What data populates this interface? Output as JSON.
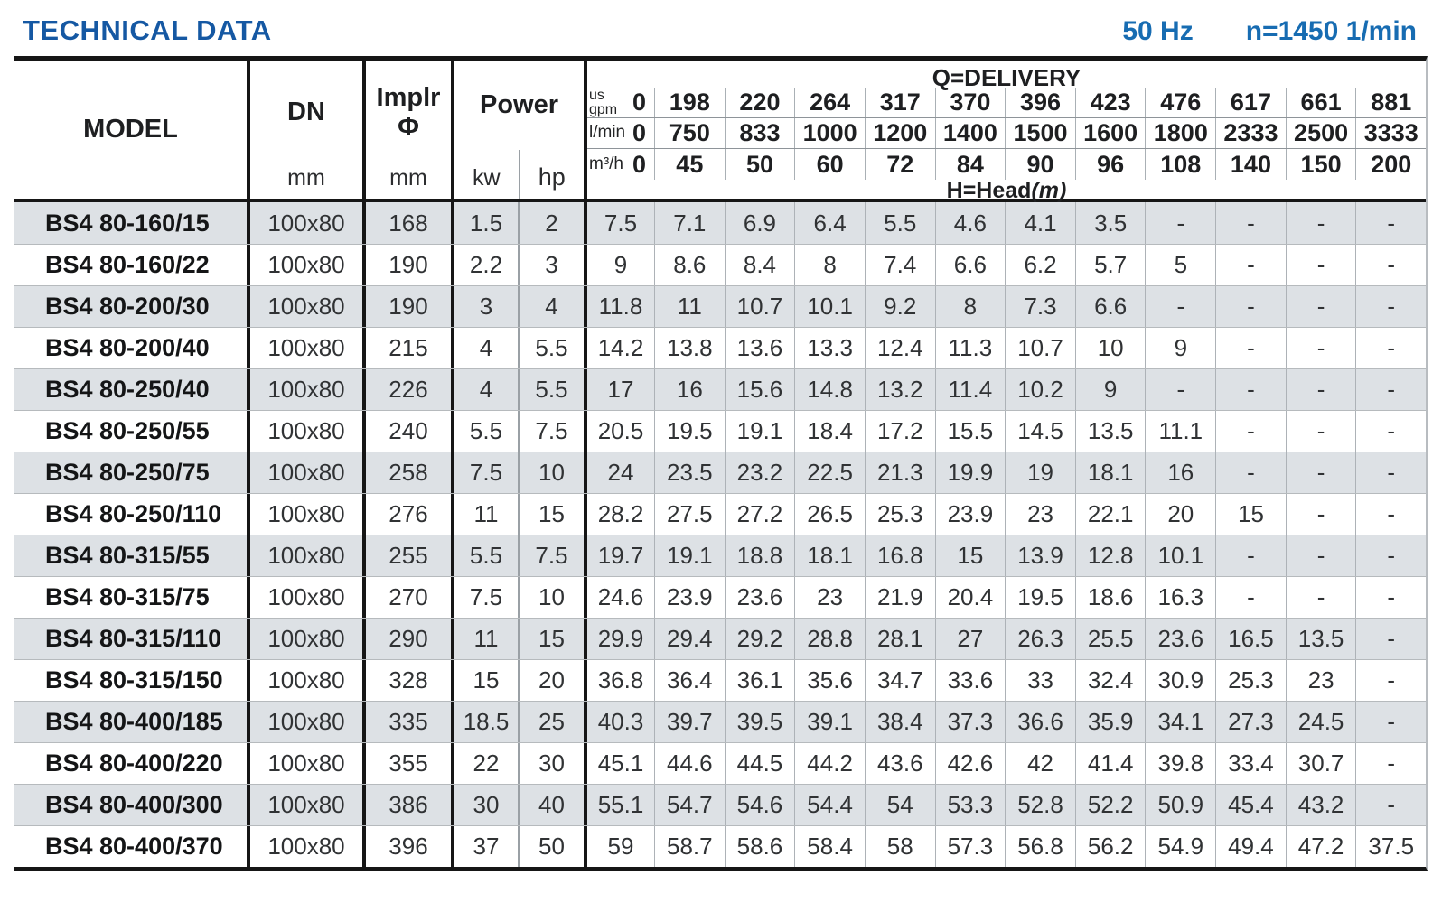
{
  "header": {
    "title": "TECHNICAL DATA",
    "frequency": "50 Hz",
    "speed": "n=1450 1/min"
  },
  "table": {
    "col_model": "MODEL",
    "col_dn": "DN",
    "col_dn_unit": "mm",
    "col_implr_line1": "Implr",
    "col_implr_line2": "Φ",
    "col_implr_unit": "mm",
    "col_power": "Power",
    "col_kw": "kw",
    "col_hp": "hp",
    "q_title": "Q=DELIVERY",
    "h_title": "H=Head",
    "h_title_unit": "(m)",
    "flow_rows": [
      {
        "label": "us\ngpm",
        "two_line": true,
        "values": [
          "0",
          "198",
          "220",
          "264",
          "317",
          "370",
          "396",
          "423",
          "476",
          "617",
          "661",
          "881"
        ]
      },
      {
        "label": "l/min",
        "two_line": false,
        "values": [
          "0",
          "750",
          "833",
          "1000",
          "1200",
          "1400",
          "1500",
          "1600",
          "1800",
          "2333",
          "2500",
          "3333"
        ]
      },
      {
        "label": "m³/h",
        "two_line": false,
        "values": [
          "0",
          "45",
          "50",
          "60",
          "72",
          "84",
          "90",
          "96",
          "108",
          "140",
          "150",
          "200"
        ]
      }
    ],
    "rows": [
      {
        "model": "BS4 80-160/15",
        "dn": "100x80",
        "implr": "168",
        "kw": "1.5",
        "hp": "2",
        "head": [
          "7.5",
          "7.1",
          "6.9",
          "6.4",
          "5.5",
          "4.6",
          "4.1",
          "3.5",
          "-",
          "-",
          "-",
          "-"
        ]
      },
      {
        "model": "BS4 80-160/22",
        "dn": "100x80",
        "implr": "190",
        "kw": "2.2",
        "hp": "3",
        "head": [
          "9",
          "8.6",
          "8.4",
          "8",
          "7.4",
          "6.6",
          "6.2",
          "5.7",
          "5",
          "-",
          "-",
          "-"
        ]
      },
      {
        "model": "BS4 80-200/30",
        "dn": "100x80",
        "implr": "190",
        "kw": "3",
        "hp": "4",
        "head": [
          "11.8",
          "11",
          "10.7",
          "10.1",
          "9.2",
          "8",
          "7.3",
          "6.6",
          "-",
          "-",
          "-",
          "-"
        ]
      },
      {
        "model": "BS4 80-200/40",
        "dn": "100x80",
        "implr": "215",
        "kw": "4",
        "hp": "5.5",
        "head": [
          "14.2",
          "13.8",
          "13.6",
          "13.3",
          "12.4",
          "11.3",
          "10.7",
          "10",
          "9",
          "-",
          "-",
          "-"
        ]
      },
      {
        "model": "BS4 80-250/40",
        "dn": "100x80",
        "implr": "226",
        "kw": "4",
        "hp": "5.5",
        "head": [
          "17",
          "16",
          "15.6",
          "14.8",
          "13.2",
          "11.4",
          "10.2",
          "9",
          "-",
          "-",
          "-",
          "-"
        ]
      },
      {
        "model": "BS4 80-250/55",
        "dn": "100x80",
        "implr": "240",
        "kw": "5.5",
        "hp": "7.5",
        "head": [
          "20.5",
          "19.5",
          "19.1",
          "18.4",
          "17.2",
          "15.5",
          "14.5",
          "13.5",
          "11.1",
          "-",
          "-",
          "-"
        ]
      },
      {
        "model": "BS4 80-250/75",
        "dn": "100x80",
        "implr": "258",
        "kw": "7.5",
        "hp": "10",
        "head": [
          "24",
          "23.5",
          "23.2",
          "22.5",
          "21.3",
          "19.9",
          "19",
          "18.1",
          "16",
          "-",
          "-",
          "-"
        ]
      },
      {
        "model": "BS4 80-250/110",
        "dn": "100x80",
        "implr": "276",
        "kw": "11",
        "hp": "15",
        "head": [
          "28.2",
          "27.5",
          "27.2",
          "26.5",
          "25.3",
          "23.9",
          "23",
          "22.1",
          "20",
          "15",
          "-",
          "-"
        ]
      },
      {
        "model": "BS4 80-315/55",
        "dn": "100x80",
        "implr": "255",
        "kw": "5.5",
        "hp": "7.5",
        "head": [
          "19.7",
          "19.1",
          "18.8",
          "18.1",
          "16.8",
          "15",
          "13.9",
          "12.8",
          "10.1",
          "-",
          "-",
          "-"
        ]
      },
      {
        "model": "BS4 80-315/75",
        "dn": "100x80",
        "implr": "270",
        "kw": "7.5",
        "hp": "10",
        "head": [
          "24.6",
          "23.9",
          "23.6",
          "23",
          "21.9",
          "20.4",
          "19.5",
          "18.6",
          "16.3",
          "-",
          "-",
          "-"
        ]
      },
      {
        "model": "BS4 80-315/110",
        "dn": "100x80",
        "implr": "290",
        "kw": "11",
        "hp": "15",
        "head": [
          "29.9",
          "29.4",
          "29.2",
          "28.8",
          "28.1",
          "27",
          "26.3",
          "25.5",
          "23.6",
          "16.5",
          "13.5",
          "-"
        ]
      },
      {
        "model": "BS4 80-315/150",
        "dn": "100x80",
        "implr": "328",
        "kw": "15",
        "hp": "20",
        "head": [
          "36.8",
          "36.4",
          "36.1",
          "35.6",
          "34.7",
          "33.6",
          "33",
          "32.4",
          "30.9",
          "25.3",
          "23",
          "-"
        ]
      },
      {
        "model": "BS4 80-400/185",
        "dn": "100x80",
        "implr": "335",
        "kw": "18.5",
        "hp": "25",
        "head": [
          "40.3",
          "39.7",
          "39.5",
          "39.1",
          "38.4",
          "37.3",
          "36.6",
          "35.9",
          "34.1",
          "27.3",
          "24.5",
          "-"
        ]
      },
      {
        "model": "BS4 80-400/220",
        "dn": "100x80",
        "implr": "355",
        "kw": "22",
        "hp": "30",
        "head": [
          "45.1",
          "44.6",
          "44.5",
          "44.2",
          "43.6",
          "42.6",
          "42",
          "41.4",
          "39.8",
          "33.4",
          "30.7",
          "-"
        ]
      },
      {
        "model": "BS4 80-400/300",
        "dn": "100x80",
        "implr": "386",
        "kw": "30",
        "hp": "40",
        "head": [
          "55.1",
          "54.7",
          "54.6",
          "54.4",
          "54",
          "53.3",
          "52.8",
          "52.2",
          "50.9",
          "45.4",
          "43.2",
          "-"
        ]
      },
      {
        "model": "BS4 80-400/370",
        "dn": "100x80",
        "implr": "396",
        "kw": "37",
        "hp": "50",
        "head": [
          "59",
          "58.7",
          "58.6",
          "58.4",
          "58",
          "57.3",
          "56.8",
          "56.2",
          "54.9",
          "49.4",
          "47.2",
          "37.5"
        ]
      }
    ]
  }
}
